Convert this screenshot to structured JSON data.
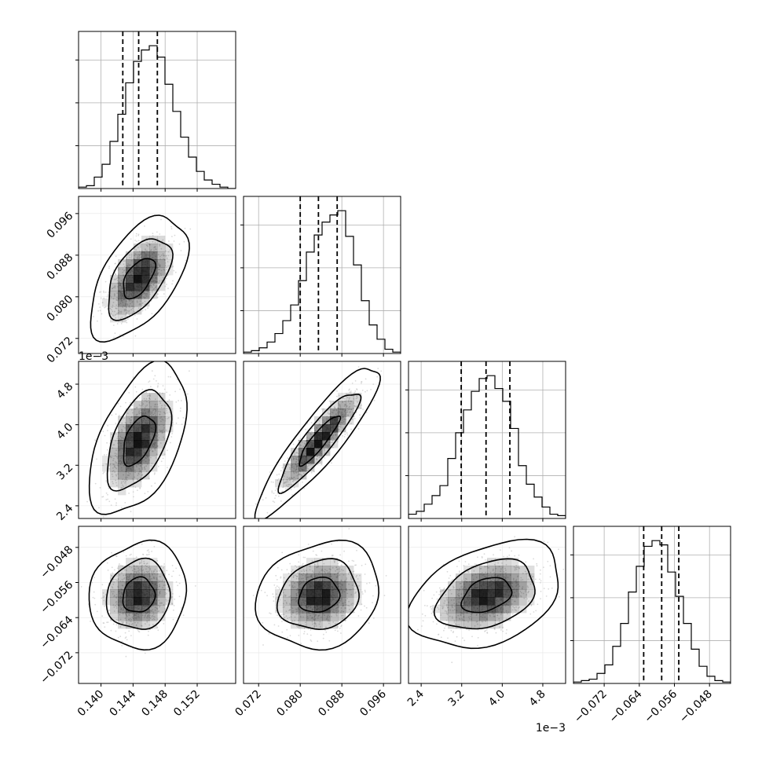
{
  "chart_data": {
    "type": "corner",
    "title": "",
    "n_params": 4,
    "params": [
      {
        "range": [
          0.1372,
          0.1568
        ],
        "ticks": [
          0.14,
          0.144,
          0.148,
          0.152
        ],
        "tick_labels": [
          "0.140",
          "0.144",
          "0.148",
          "0.152"
        ],
        "offset_text": "",
        "mean": 0.1447,
        "sd": 0.002
      },
      {
        "range": [
          0.0691,
          0.0993
        ],
        "ticks": [
          0.072,
          0.08,
          0.088,
          0.096
        ],
        "tick_labels": [
          "0.072",
          "0.080",
          "0.088",
          "0.096"
        ],
        "offset_text": "",
        "mean": 0.0836,
        "sd": 0.0039
      },
      {
        "range": [
          0.00215,
          0.00525
        ],
        "ticks": [
          0.0024,
          0.0032,
          0.004,
          0.0048
        ],
        "tick_labels": [
          "2.4",
          "3.2",
          "4.0",
          "4.8"
        ],
        "offset_text": "1e−3",
        "mean": 0.00369,
        "sd": 0.00049
      },
      {
        "range": [
          -0.079,
          -0.0432
        ],
        "ticks": [
          -0.072,
          -0.064,
          -0.056,
          -0.048
        ],
        "tick_labels": [
          "−0.072",
          "−0.064",
          "−0.056",
          "−0.048"
        ],
        "offset_text": "",
        "mean": -0.0589,
        "sd": 0.004
      }
    ],
    "histograms": [
      {
        "bins": [
          0.1372,
          0.1568
        ],
        "counts": [
          0.01,
          0.02,
          0.08,
          0.17,
          0.33,
          0.52,
          0.74,
          0.89,
          0.97,
          1.0,
          0.92,
          0.73,
          0.54,
          0.36,
          0.22,
          0.12,
          0.06,
          0.03,
          0.01,
          0.0
        ],
        "quantiles": [
          0.14272,
          0.1447,
          0.14703
        ]
      },
      {
        "bins": [
          0.0691,
          0.0993
        ],
        "counts": [
          0.01,
          0.02,
          0.04,
          0.08,
          0.14,
          0.23,
          0.34,
          0.51,
          0.71,
          0.83,
          0.92,
          0.97,
          1.0,
          0.82,
          0.62,
          0.37,
          0.2,
          0.1,
          0.03,
          0.01
        ],
        "quantiles": [
          0.08,
          0.0835,
          0.0871
        ]
      },
      {
        "bins": [
          0.00215,
          0.00525
        ],
        "counts": [
          0.03,
          0.05,
          0.1,
          0.16,
          0.23,
          0.42,
          0.6,
          0.76,
          0.89,
          0.98,
          1.0,
          0.91,
          0.82,
          0.63,
          0.37,
          0.24,
          0.15,
          0.08,
          0.03,
          0.02
        ],
        "quantiles": [
          0.00319,
          0.00368,
          0.00415
        ]
      },
      {
        "bins": [
          -0.079,
          -0.0432
        ],
        "counts": [
          0.01,
          0.02,
          0.03,
          0.07,
          0.13,
          0.26,
          0.42,
          0.64,
          0.82,
          0.96,
          1.0,
          0.97,
          0.78,
          0.61,
          0.42,
          0.24,
          0.12,
          0.05,
          0.02,
          0.01
        ],
        "quantiles": [
          -0.063,
          -0.0589,
          -0.055
        ]
      }
    ],
    "correlations": [
      {
        "pair": [
          1,
          0
        ],
        "rho": 0.55
      },
      {
        "pair": [
          2,
          0
        ],
        "rho": 0.5
      },
      {
        "pair": [
          2,
          1
        ],
        "rho": 0.9
      },
      {
        "pair": [
          3,
          0
        ],
        "rho": 0.08
      },
      {
        "pair": [
          3,
          1
        ],
        "rho": 0.15
      },
      {
        "pair": [
          3,
          2
        ],
        "rho": 0.35
      }
    ],
    "contour_levels": [
      0.39,
      0.86,
      0.99
    ],
    "grid": true,
    "colors": {
      "axes": "#000000",
      "grid": "#b0b0b0",
      "points": "#bbbbbb",
      "density": "#000000"
    }
  }
}
